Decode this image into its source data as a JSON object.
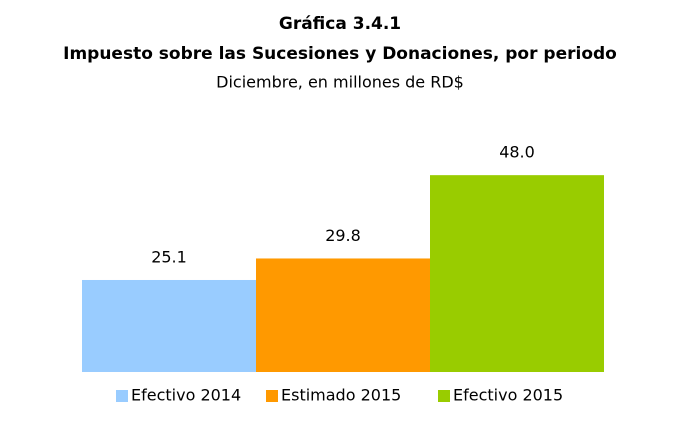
{
  "chart_data": {
    "type": "bar",
    "title": "Gráfica 3.4.1",
    "subtitle_bold": "Impuesto sobre las Sucesiones y Donaciones, por periodo",
    "subtitle": "Diciembre, en millones de RD$",
    "categories": [
      "Efectivo 2014",
      "Estimado 2015",
      "Efectivo 2015"
    ],
    "values": [
      25.1,
      29.8,
      48.0
    ],
    "value_labels": [
      "25.1",
      "29.8",
      "48.0"
    ],
    "colors": [
      "#99ccff",
      "#ff9900",
      "#99cc00"
    ],
    "ylim": [
      5,
      50
    ],
    "legend": "bottom"
  }
}
